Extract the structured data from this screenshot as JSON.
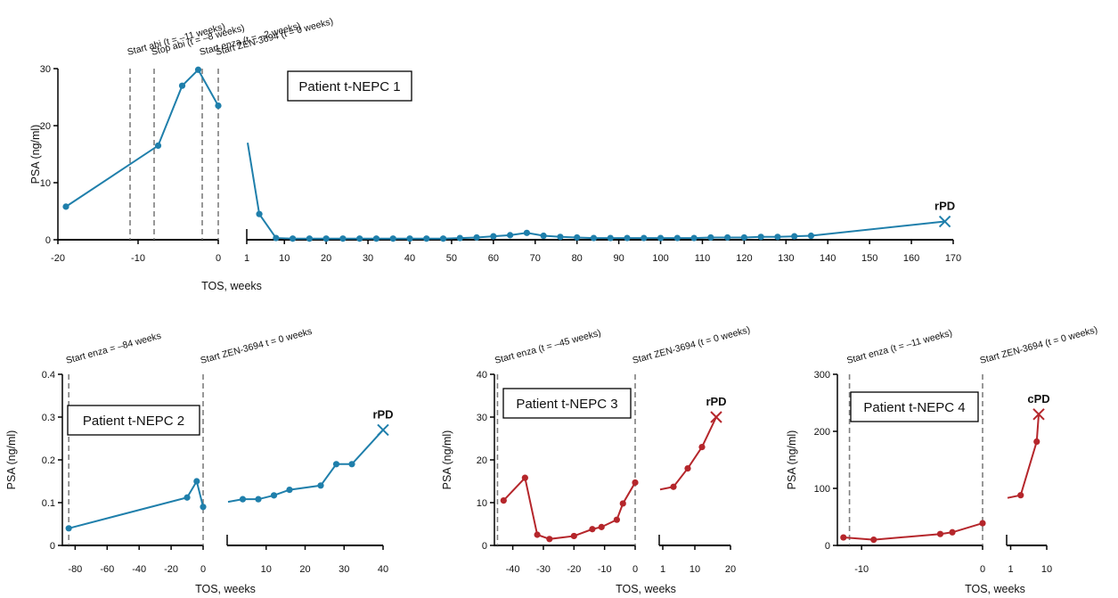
{
  "colors": {
    "blue": "#1f7fab",
    "red": "#b5262b",
    "vline": "#7f7f7f",
    "axis": "#000000"
  },
  "chart_data": [
    {
      "type": "line",
      "title": "Patient t-NEPC 1",
      "xlabel": "TOS, weeks",
      "ylabel": "PSA (ng/ml)",
      "color": "blue",
      "ylim": [
        0,
        30
      ],
      "yticks": [
        "0",
        "10",
        "20",
        "30"
      ],
      "left": {
        "xlim": [
          -20,
          0
        ],
        "xticks": [
          "-20",
          "-10",
          "0"
        ],
        "x": [
          -19,
          -7.5,
          -4.5,
          -2.5,
          0
        ],
        "y": [
          5.8,
          16.5,
          27,
          29.8,
          23.5
        ]
      },
      "right": {
        "xlim": [
          1,
          170
        ],
        "xticks": [
          "1",
          "10",
          "20",
          "30",
          "40",
          "50",
          "60",
          "70",
          "80",
          "90",
          "100",
          "110",
          "120",
          "130",
          "140",
          "150",
          "160",
          "170"
        ],
        "x": [
          4,
          8,
          12,
          16,
          20,
          24,
          28,
          32,
          36,
          40,
          44,
          48,
          52,
          56,
          60,
          64,
          68,
          72,
          76,
          80,
          84,
          88,
          92,
          96,
          100,
          104,
          108,
          112,
          116,
          120,
          124,
          128,
          132,
          136
        ],
        "y": [
          4.5,
          0.3,
          0.2,
          0.2,
          0.2,
          0.2,
          0.2,
          0.2,
          0.2,
          0.2,
          0.2,
          0.2,
          0.3,
          0.4,
          0.6,
          0.8,
          1.2,
          0.7,
          0.5,
          0.4,
          0.3,
          0.3,
          0.3,
          0.3,
          0.3,
          0.3,
          0.3,
          0.4,
          0.4,
          0.4,
          0.5,
          0.5,
          0.6,
          0.7
        ],
        "end_marker": {
          "x": 168,
          "y": 3.2,
          "label": "rPD"
        }
      },
      "events": [
        {
          "x": -11,
          "label": "Start abi (t = –11 weeks)"
        },
        {
          "x": -8,
          "label": "Stop abi (t = –8 weeks)"
        },
        {
          "x": -2,
          "label": "Start enza (t = –2 weeks)"
        },
        {
          "x": 0,
          "label": "Start ZEN-3694 (t = 0 weeks)"
        }
      ]
    },
    {
      "type": "line",
      "title": "Patient t-NEPC 2",
      "xlabel": "TOS, weeks",
      "ylabel": "PSA (ng/ml)",
      "color": "blue",
      "ylim": [
        0,
        0.4
      ],
      "yticks": [
        "0",
        "0.1",
        "0.2",
        "0.3",
        "0.4"
      ],
      "left": {
        "xlim": [
          -88,
          0
        ],
        "xticks": [
          "-80",
          "-60",
          "-40",
          "-20",
          "0"
        ],
        "x": [
          -84,
          -10,
          -4,
          0
        ],
        "y": [
          0.04,
          0.112,
          0.15,
          0.09
        ]
      },
      "right": {
        "xlim": [
          0,
          40
        ],
        "xticks": [
          "10",
          "20",
          "30",
          "40"
        ],
        "x": [
          4,
          8,
          12,
          16,
          24,
          28,
          32
        ],
        "y": [
          0.108,
          0.108,
          0.117,
          0.13,
          0.14,
          0.19,
          0.19
        ],
        "end_marker": {
          "x": 40,
          "y": 0.27,
          "label": "rPD"
        }
      },
      "events": [
        {
          "x": -84,
          "label": "Start enza = –84 weeks"
        },
        {
          "x": 0,
          "label": "Start ZEN-3694 t = 0 weeks"
        }
      ]
    },
    {
      "type": "line",
      "title": "Patient t-NEPC 3",
      "xlabel": "TOS, weeks",
      "ylabel": "PSA (ng/ml)",
      "color": "red",
      "ylim": [
        0,
        40
      ],
      "yticks": [
        "0",
        "10",
        "20",
        "30",
        "40"
      ],
      "left": {
        "xlim": [
          -46,
          0
        ],
        "xticks": [
          "-40",
          "-30",
          "-20",
          "-10",
          "0"
        ],
        "x": [
          -43,
          -36,
          -32,
          -28,
          -20,
          -14,
          -11,
          -6,
          -4,
          0
        ],
        "y": [
          10.5,
          15.8,
          2.5,
          1.5,
          2.2,
          3.8,
          4.3,
          6,
          9.8,
          14.7
        ]
      },
      "right": {
        "xlim": [
          0,
          20
        ],
        "xticks": [
          "1",
          "10",
          "20"
        ],
        "x": [
          4,
          8,
          12
        ],
        "y": [
          13.7,
          18,
          23
        ],
        "end_marker": {
          "x": 16,
          "y": 30,
          "label": "rPD"
        }
      },
      "events": [
        {
          "x": -45,
          "label": "Start enza (t = –45 weeks)"
        },
        {
          "x": 0,
          "label": "Start  ZEN-3694 (t = 0 weeks)"
        }
      ]
    },
    {
      "type": "line",
      "title": "Patient t-NEPC 4",
      "xlabel": "TOS, weeks",
      "ylabel": "PSA (ng/ml)",
      "color": "red",
      "ylim": [
        0,
        300
      ],
      "yticks": [
        "0",
        "100",
        "200",
        "300"
      ],
      "left": {
        "xlim": [
          -12,
          0
        ],
        "xticks": [
          "-10",
          "0"
        ],
        "x": [
          -11.5,
          -9,
          -3.5,
          -2.5,
          0
        ],
        "y": [
          14,
          10,
          20,
          23,
          39
        ]
      },
      "right": {
        "xlim": [
          0,
          10
        ],
        "xticks": [
          "1",
          "10"
        ],
        "x": [
          3.5,
          7.5
        ],
        "y": [
          88,
          182
        ],
        "end_marker": {
          "x": 8,
          "y": 230,
          "label": "cPD"
        }
      },
      "events": [
        {
          "x": -11,
          "label": "Start enza (t = –11 weeks)"
        },
        {
          "x": 0,
          "label": "Start ZEN-3694 (t = 0 weeks)"
        }
      ]
    }
  ]
}
